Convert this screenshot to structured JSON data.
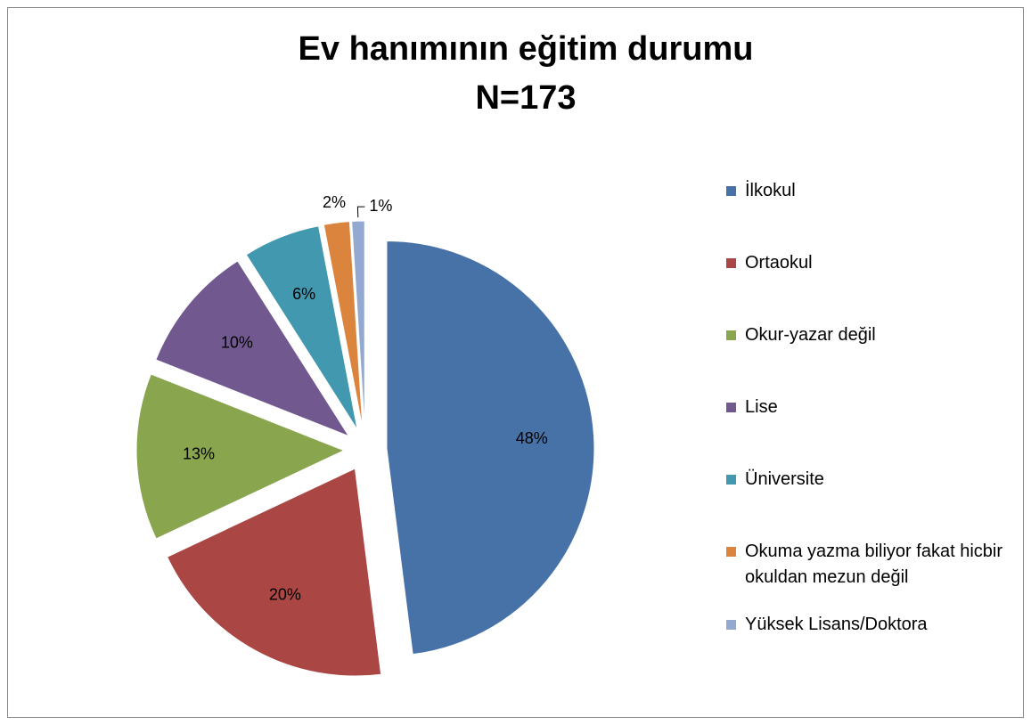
{
  "chart_data": {
    "type": "pie",
    "title": "Ev hanımının eğitim durumu",
    "subtitle": "N=173",
    "categories": [
      "İlkokul",
      "Ortaokul",
      "Okur-yazar değil",
      "Lise",
      "Üniversite",
      "Okuma yazma biliyor fakat hicbir okuldan mezun değil",
      "Yüksek Lisans/Doktora"
    ],
    "values": [
      48,
      20,
      13,
      10,
      6,
      2,
      1
    ],
    "value_labels": [
      "48%",
      "20%",
      "13%",
      "10%",
      "6%",
      "2%",
      "1%"
    ],
    "colors": [
      "#4672a8",
      "#aa4643",
      "#89a54e",
      "#71588f",
      "#4198af",
      "#db843d",
      "#93a9cf"
    ],
    "legend": "right"
  }
}
